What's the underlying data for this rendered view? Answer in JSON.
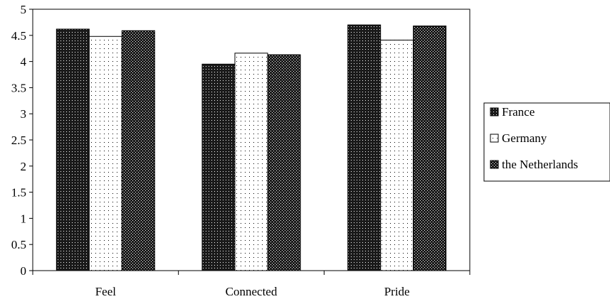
{
  "chart_data": {
    "type": "bar",
    "categories": [
      "Feel",
      "Connected",
      "Pride"
    ],
    "series": [
      {
        "name": "France",
        "values": [
          4.62,
          3.95,
          4.7
        ],
        "pattern": "dense-dots-dark"
      },
      {
        "name": "Germany",
        "values": [
          4.48,
          4.16,
          4.41
        ],
        "pattern": "sparse-dots-light"
      },
      {
        "name": "the Netherlands",
        "values": [
          4.59,
          4.13,
          4.68
        ],
        "pattern": "checker-dots-dark"
      }
    ],
    "ylim": [
      0,
      5
    ],
    "yticks": [
      "0",
      "0.5",
      "1",
      "1.5",
      "2",
      "2.5",
      "3",
      "3.5",
      "4",
      "4.5",
      "5"
    ],
    "grid": false,
    "legend": "right",
    "colors": {
      "bar_dark": "#1a1a1a",
      "bar_light": "#ffffff",
      "dot_light": "#ffffff",
      "dot_dark": "#000000",
      "axis": "#000000"
    }
  }
}
